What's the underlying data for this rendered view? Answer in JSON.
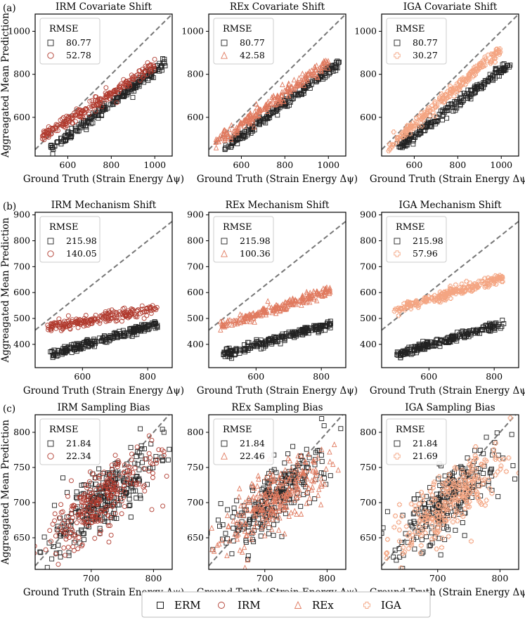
{
  "figure": {
    "shared_xlabel": "Ground Truth (Strain Energy Δψ)",
    "shared_ylabel": "Aggreagated Mean Prediction",
    "legend": [
      {
        "label": "ERM",
        "marker": "square",
        "color": "#000000"
      },
      {
        "label": "IRM",
        "marker": "circle",
        "color": "#b03a2e"
      },
      {
        "label": "REx",
        "marker": "triangle",
        "color": "#e07a5f"
      },
      {
        "label": "IGA",
        "marker": "plus",
        "color": "#f4a582"
      }
    ],
    "rows": [
      {
        "label": "(a)",
        "xlim": [
          450,
          1080
        ],
        "ylim": [
          420,
          1080
        ],
        "xticks": [
          600,
          800,
          1000
        ],
        "yticks": [
          600,
          800,
          1000
        ]
      },
      {
        "label": "(b)",
        "xlim": [
          455,
          875
        ],
        "ylim": [
          310,
          910
        ],
        "xticks": [
          600,
          800
        ],
        "yticks": [
          400,
          500,
          600,
          700,
          800,
          900
        ]
      },
      {
        "label": "(c)",
        "xlim": [
          610,
          830
        ],
        "ylim": [
          605,
          825
        ],
        "xticks": [
          700,
          800
        ],
        "yticks": [
          650,
          700,
          750,
          800
        ]
      }
    ]
  },
  "chart_data": [
    {
      "type": "scatter",
      "title": "IRM Covariate Shift",
      "legend_title": "RMSE",
      "legend": [
        {
          "name": "",
          "value": "80.77"
        },
        {
          "name": "",
          "value": "52.78"
        }
      ],
      "method_marker": "circle",
      "method_color": "#b03a2e",
      "erm": {
        "x": [
          520,
          1050
        ],
        "y": [
          455,
          855
        ]
      },
      "method": {
        "x": [
          480,
          1000
        ],
        "y": [
          510,
          840
        ]
      },
      "diagonal": true
    },
    {
      "type": "scatter",
      "title": "REx Covariate Shift",
      "legend_title": "RMSE",
      "legend": [
        {
          "name": "",
          "value": "80.77"
        },
        {
          "name": "",
          "value": "42.58"
        }
      ],
      "method_marker": "triangle",
      "method_color": "#e07a5f",
      "erm": {
        "x": [
          520,
          1050
        ],
        "y": [
          455,
          855
        ]
      },
      "method": {
        "x": [
          480,
          1000
        ],
        "y": [
          480,
          860
        ]
      },
      "diagonal": true
    },
    {
      "type": "scatter",
      "title": "IGA Covariate Shift",
      "legend_title": "RMSE",
      "legend": [
        {
          "name": "",
          "value": "80.77"
        },
        {
          "name": "",
          "value": "30.27"
        }
      ],
      "method_marker": "plus",
      "method_color": "#f4a582",
      "erm": {
        "x": [
          520,
          1050
        ],
        "y": [
          455,
          855
        ]
      },
      "method": {
        "x": [
          480,
          1000
        ],
        "y": [
          460,
          920
        ]
      },
      "diagonal": true
    },
    {
      "type": "scatter",
      "title": "IRM Mechanism Shift",
      "legend_title": "RMSE",
      "legend": [
        {
          "name": "",
          "value": "215.98"
        },
        {
          "name": "",
          "value": "140.05"
        }
      ],
      "method_marker": "circle",
      "method_color": "#b03a2e",
      "erm": {
        "x": [
          500,
          830
        ],
        "y": [
          360,
          480
        ]
      },
      "method": {
        "x": [
          490,
          830
        ],
        "y": [
          465,
          540
        ]
      },
      "diagonal": true
    },
    {
      "type": "scatter",
      "title": "REx Mechanism Shift",
      "legend_title": "RMSE",
      "legend": [
        {
          "name": "",
          "value": "215.98"
        },
        {
          "name": "",
          "value": "100.36"
        }
      ],
      "method_marker": "triangle",
      "method_color": "#e07a5f",
      "erm": {
        "x": [
          500,
          830
        ],
        "y": [
          360,
          480
        ]
      },
      "method": {
        "x": [
          490,
          830
        ],
        "y": [
          470,
          610
        ]
      },
      "diagonal": true
    },
    {
      "type": "scatter",
      "title": "IGA Mechanism Shift",
      "legend_title": "RMSE",
      "legend": [
        {
          "name": "",
          "value": "215.98"
        },
        {
          "name": "",
          "value": "57.96"
        }
      ],
      "method_marker": "plus",
      "method_color": "#f4a582",
      "erm": {
        "x": [
          500,
          830
        ],
        "y": [
          360,
          480
        ]
      },
      "method": {
        "x": [
          490,
          830
        ],
        "y": [
          530,
          660
        ]
      },
      "diagonal": true
    },
    {
      "type": "scatter",
      "title": "IRM Sampling Bias",
      "legend_title": "RMSE",
      "legend": [
        {
          "name": "",
          "value": "21.84"
        },
        {
          "name": "",
          "value": "22.34"
        }
      ],
      "method_marker": "circle",
      "method_color": "#b03a2e",
      "erm": {
        "x": [
          620,
          810
        ],
        "y": [
          640,
          770
        ]
      },
      "method": {
        "x": [
          620,
          810
        ],
        "y": [
          645,
          760
        ]
      },
      "diagonal": true
    },
    {
      "type": "scatter",
      "title": "REx Sampling Bias",
      "legend_title": "RMSE",
      "legend": [
        {
          "name": "",
          "value": "21.84"
        },
        {
          "name": "",
          "value": "22.46"
        }
      ],
      "method_marker": "triangle",
      "method_color": "#e07a5f",
      "erm": {
        "x": [
          620,
          810
        ],
        "y": [
          640,
          770
        ]
      },
      "method": {
        "x": [
          620,
          810
        ],
        "y": [
          645,
          760
        ]
      },
      "diagonal": true
    },
    {
      "type": "scatter",
      "title": "IGA Sampling Bias",
      "legend_title": "RMSE",
      "legend": [
        {
          "name": "",
          "value": "21.84"
        },
        {
          "name": "",
          "value": "21.69"
        }
      ],
      "method_marker": "plus",
      "method_color": "#f4a582",
      "erm": {
        "x": [
          620,
          810
        ],
        "y": [
          640,
          770
        ]
      },
      "method": {
        "x": [
          620,
          810
        ],
        "y": [
          640,
          760
        ]
      },
      "diagonal": true
    }
  ]
}
